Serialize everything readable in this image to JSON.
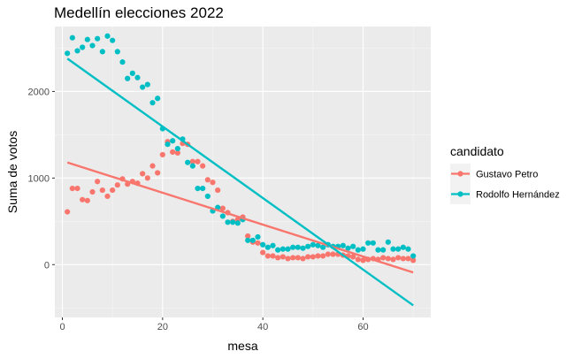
{
  "chart_data": {
    "type": "scatter",
    "title": "Medellín elecciones 2022",
    "xlabel": "mesa",
    "ylabel": "Suma de votos",
    "xlim": [
      -1.5,
      73.5
    ],
    "ylim": [
      -610,
      2750
    ],
    "x_ticks": [
      0,
      20,
      40,
      60
    ],
    "x_tick_labels": [
      "0",
      "20",
      "40",
      "60"
    ],
    "y_ticks": [
      0,
      1000,
      2000
    ],
    "y_tick_labels": [
      "0",
      "1000",
      "2000"
    ],
    "legend": {
      "title": "candidato",
      "position": "right"
    },
    "series": [
      {
        "name": "Gustavo Petro",
        "color": "#F8766D",
        "x": [
          1,
          2,
          3,
          4,
          5,
          6,
          7,
          8,
          9,
          10,
          11,
          12,
          13,
          14,
          15,
          16,
          17,
          18,
          19,
          20,
          21,
          22,
          23,
          24,
          25,
          26,
          27,
          28,
          29,
          30,
          31,
          32,
          33,
          34,
          35,
          36,
          37,
          38,
          39,
          40,
          41,
          42,
          43,
          44,
          45,
          46,
          47,
          48,
          49,
          50,
          51,
          52,
          53,
          54,
          55,
          56,
          57,
          58,
          59,
          60,
          61,
          62,
          63,
          64,
          65,
          66,
          67,
          68,
          69,
          70
        ],
        "y": [
          610,
          880,
          880,
          750,
          740,
          840,
          960,
          860,
          790,
          860,
          920,
          990,
          930,
          960,
          940,
          1050,
          1000,
          1140,
          1060,
          1270,
          1420,
          1300,
          1290,
          1400,
          1390,
          1190,
          1190,
          1140,
          980,
          950,
          860,
          650,
          600,
          500,
          520,
          550,
          330,
          260,
          250,
          140,
          100,
          100,
          80,
          90,
          70,
          80,
          80,
          70,
          90,
          90,
          100,
          100,
          120,
          120,
          120,
          110,
          100,
          90,
          60,
          50,
          60,
          70,
          60,
          80,
          70,
          60,
          80,
          70,
          70,
          50
        ],
        "fit": [
          1180,
          -90
        ]
      },
      {
        "name": "Rodolfo Hernández",
        "color": "#00BFC4",
        "x": [
          1,
          2,
          3,
          4,
          5,
          6,
          7,
          8,
          9,
          10,
          11,
          12,
          13,
          14,
          15,
          16,
          17,
          18,
          19,
          20,
          21,
          22,
          23,
          24,
          25,
          26,
          27,
          28,
          29,
          30,
          31,
          32,
          33,
          34,
          35,
          36,
          37,
          38,
          39,
          40,
          41,
          42,
          43,
          44,
          45,
          46,
          47,
          48,
          49,
          50,
          51,
          52,
          53,
          54,
          55,
          56,
          57,
          58,
          59,
          60,
          61,
          62,
          63,
          64,
          65,
          66,
          67,
          68,
          69,
          70
        ],
        "y": [
          2440,
          2620,
          2470,
          2510,
          2600,
          2530,
          2610,
          2460,
          2640,
          2590,
          2460,
          2340,
          2150,
          2210,
          2160,
          2050,
          2080,
          1870,
          1920,
          1570,
          1390,
          1430,
          1340,
          1450,
          1180,
          1140,
          880,
          880,
          790,
          620,
          660,
          560,
          490,
          490,
          480,
          520,
          280,
          280,
          320,
          230,
          200,
          220,
          170,
          180,
          180,
          200,
          200,
          190,
          210,
          230,
          220,
          200,
          230,
          210,
          210,
          220,
          190,
          210,
          170,
          180,
          250,
          250,
          170,
          170,
          260,
          180,
          180,
          200,
          180,
          100
        ],
        "fit": [
          2380,
          -470
        ]
      }
    ]
  }
}
